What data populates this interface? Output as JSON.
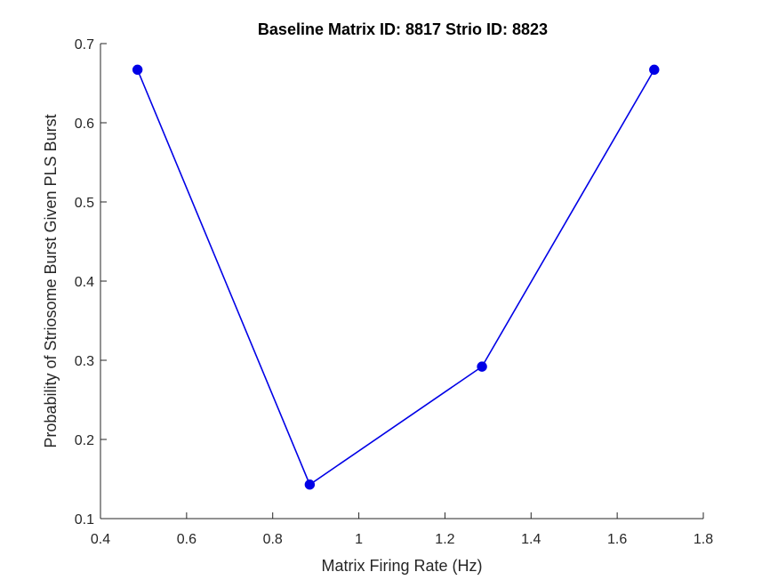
{
  "chart_data": {
    "type": "line",
    "title": "Baseline Matrix ID: 8817 Strio ID: 8823",
    "xlabel": "Matrix Firing Rate (Hz)",
    "ylabel": "Probability of Striosome Burst Given PLS Burst",
    "xlim": [
      0.4,
      1.8
    ],
    "ylim": [
      0.1,
      0.7
    ],
    "xticks": [
      0.4,
      0.6,
      0.8,
      1,
      1.2,
      1.4,
      1.6,
      1.8
    ],
    "xtick_labels": [
      "0.4",
      "0.6",
      "0.8",
      "1",
      "1.2",
      "1.4",
      "1.6",
      "1.8"
    ],
    "yticks": [
      0.1,
      0.2,
      0.3,
      0.4,
      0.5,
      0.6,
      0.7
    ],
    "ytick_labels": [
      "0.1",
      "0.2",
      "0.3",
      "0.4",
      "0.5",
      "0.6",
      "0.7"
    ],
    "grid": false,
    "series": [
      {
        "name": "series-1",
        "color": "#0000e6",
        "x": [
          0.486,
          0.886,
          1.286,
          1.686
        ],
        "values": [
          0.667,
          0.143,
          0.292,
          0.667
        ]
      }
    ]
  }
}
